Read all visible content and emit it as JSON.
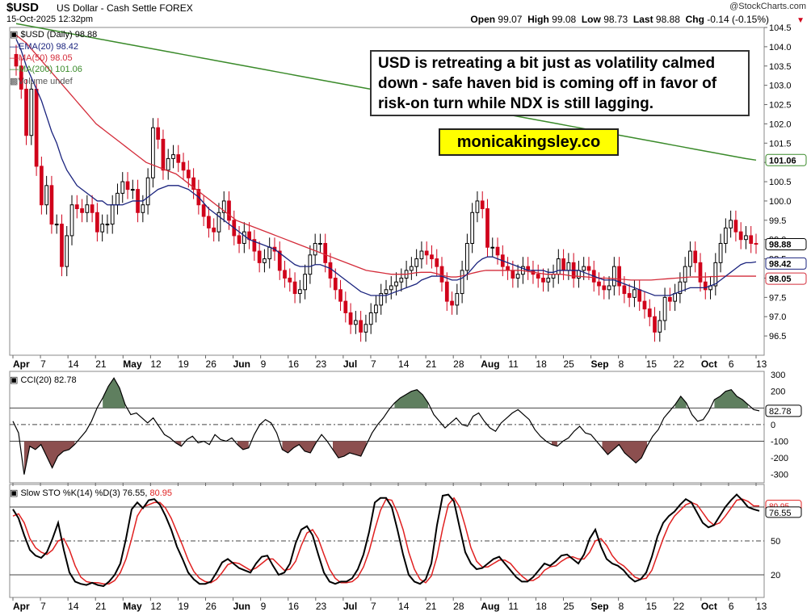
{
  "header": {
    "symbol": "$USD",
    "subtitle": "US Dollar - Cash Settle  FOREX",
    "datetime": "15-Oct-2025 12:32pm",
    "copyright": "@StockCharts.com",
    "open_label": "Open",
    "open": "99.07",
    "high_label": "High",
    "high": "99.08",
    "low_label": "Low",
    "low": "98.73",
    "last_label": "Last",
    "last": "98.88",
    "chg_label": "Chg",
    "chg": "-0.14 (-0.15%)"
  },
  "annotation": "USD is retreating a bit just as volatility calmed down - safe haven bid is coming off in favor of risk-on turn while NDX is still lagging.",
  "brand": "monicakingsley.co",
  "legend": {
    "price": "$USD (Daily) 98.88",
    "ema": "EMA(20) 98.42",
    "ma50": "MA(50) 98.05",
    "ma200": "MA(200) 101.06",
    "volume": "Volume undef",
    "cci": "CCI(20) 82.78",
    "sto_main": "Slow STO %K(14) %D(3) 76.55,",
    "sto_d": "80.95"
  },
  "colors": {
    "up": "#000000",
    "down": "#d0021b",
    "ema": "#1a237e",
    "ma50": "#d42c3a",
    "ma200": "#3a8a2a",
    "cci_fill": "#5f7f5f",
    "cci_neg": "#8c4f4f",
    "k": "#000000",
    "d": "#e02020"
  },
  "chart_data": [
    {
      "type": "candlestick",
      "title": "$USD (Daily) 98.88",
      "ylim": [
        96.0,
        104.5
      ],
      "y_ticks": [
        "104.5",
        "104.0",
        "103.5",
        "103.0",
        "102.5",
        "102.0",
        "101.5",
        "101.0",
        "100.5",
        "100.0",
        "99.5",
        "99.0",
        "98.5",
        "98.0",
        "97.5",
        "97.0",
        "96.5"
      ],
      "x_ticks": [
        "Apr",
        "7",
        "14",
        "21",
        "May",
        "12",
        "19",
        "26",
        "Jun",
        "9",
        "16",
        "23",
        "Jul",
        "7",
        "14",
        "21",
        "28",
        "Aug",
        "11",
        "18",
        "25",
        "Sep",
        "8",
        "15",
        "22",
        "Oct",
        "6",
        "13"
      ],
      "x_ticks_bold": [
        "Apr",
        "May",
        "Jun",
        "Jul",
        "Aug",
        "Sep",
        "Oct"
      ],
      "last_labels": {
        "price": "98.88",
        "ema": "98.42",
        "ma50": "98.05",
        "ma200": "101.06"
      },
      "close": [
        103.5,
        102.9,
        101.7,
        102.9,
        100.9,
        99.9,
        100.4,
        99.4,
        99.4,
        98.3,
        99.1,
        99.9,
        99.8,
        99.7,
        99.9,
        99.7,
        99.2,
        99.4,
        99.4,
        99.9,
        100.2,
        100.5,
        100.3,
        100.3,
        99.7,
        99.9,
        100.6,
        101.9,
        101.6,
        100.8,
        101.1,
        101.2,
        101.0,
        100.8,
        100.6,
        100.3,
        99.9,
        99.6,
        99.3,
        99.2,
        99.7,
        100.0,
        99.5,
        99.1,
        98.9,
        99.2,
        99.0,
        98.7,
        98.4,
        98.5,
        98.8,
        98.7,
        98.2,
        98.0,
        97.9,
        97.6,
        97.7,
        98.1,
        98.6,
        98.9,
        98.9,
        98.4,
        98.0,
        97.7,
        97.4,
        97.1,
        96.8,
        96.9,
        96.6,
        96.8,
        97.1,
        97.3,
        97.6,
        97.7,
        97.8,
        97.9,
        98.0,
        98.2,
        98.3,
        98.5,
        98.7,
        98.6,
        98.5,
        98.3,
        97.9,
        97.4,
        97.3,
        97.6,
        98.2,
        98.9,
        99.7,
        100.0,
        99.8,
        98.8,
        98.8,
        98.6,
        98.3,
        98.2,
        98.0,
        98.1,
        98.3,
        98.2,
        98.1,
        98.0,
        97.9,
        98.0,
        98.1,
        98.5,
        98.2,
        98.4,
        98.0,
        98.2,
        98.3,
        98.2,
        97.9,
        97.8,
        97.7,
        97.8,
        98.3,
        97.8,
        97.6,
        97.5,
        97.7,
        97.4,
        97.2,
        97.0,
        96.6,
        96.9,
        97.5,
        97.4,
        97.6,
        97.9,
        98.3,
        98.7,
        98.4,
        97.9,
        97.7,
        97.8,
        98.4,
        98.9,
        99.3,
        99.5,
        99.2,
        99.0,
        99.1,
        98.9,
        98.88
      ],
      "ema20": [
        104.2,
        103.9,
        103.5,
        103.2,
        102.9,
        102.6,
        102.2,
        101.8,
        101.5,
        101.1,
        100.8,
        100.6,
        100.4,
        100.3,
        100.2,
        100.1,
        100.0,
        100.0,
        99.9,
        99.9,
        99.9,
        99.9,
        99.95,
        100.0,
        100.0,
        100.0,
        100.1,
        100.2,
        100.3,
        100.35,
        100.4,
        100.4,
        100.4,
        100.35,
        100.3,
        100.2,
        100.1,
        99.95,
        99.8,
        99.7,
        99.6,
        99.5,
        99.4,
        99.3,
        99.2,
        99.1,
        99.0,
        98.95,
        98.9,
        98.85,
        98.8,
        98.75,
        98.65,
        98.55,
        98.45,
        98.35,
        98.3,
        98.3,
        98.3,
        98.35,
        98.35,
        98.3,
        98.25,
        98.15,
        98.05,
        97.95,
        97.85,
        97.75,
        97.65,
        97.6,
        97.55,
        97.55,
        97.55,
        97.55,
        97.6,
        97.65,
        97.7,
        97.75,
        97.8,
        97.85,
        97.95,
        98.0,
        98.05,
        98.05,
        98.05,
        98.0,
        97.95,
        97.95,
        98.0,
        98.1,
        98.25,
        98.4,
        98.5,
        98.55,
        98.55,
        98.5,
        98.45,
        98.4,
        98.35,
        98.3,
        98.25,
        98.2,
        98.2,
        98.2,
        98.2,
        98.15,
        98.15,
        98.2,
        98.2,
        98.2,
        98.2,
        98.2,
        98.15,
        98.1,
        98.05,
        98.0,
        97.95,
        97.95,
        97.95,
        97.9,
        97.85,
        97.8,
        97.75,
        97.7,
        97.65,
        97.6,
        97.55,
        97.55,
        97.55,
        97.55,
        97.6,
        97.65,
        97.7,
        97.75,
        97.75,
        97.75,
        97.75,
        97.8,
        97.85,
        97.95,
        98.05,
        98.15,
        98.25,
        98.35,
        98.4,
        98.4,
        98.42
      ],
      "ma50": [
        104.3,
        104.2,
        104.1,
        103.95,
        103.8,
        103.65,
        103.5,
        103.35,
        103.2,
        103.05,
        102.9,
        102.75,
        102.6,
        102.45,
        102.3,
        102.15,
        102.0,
        101.9,
        101.8,
        101.7,
        101.6,
        101.5,
        101.4,
        101.3,
        101.2,
        101.1,
        101.0,
        100.95,
        100.9,
        100.85,
        100.8,
        100.75,
        100.7,
        100.6,
        100.5,
        100.4,
        100.3,
        100.2,
        100.1,
        100.0,
        99.9,
        99.8,
        99.7,
        99.6,
        99.5,
        99.45,
        99.4,
        99.35,
        99.3,
        99.25,
        99.2,
        99.15,
        99.1,
        99.05,
        99.0,
        98.95,
        98.9,
        98.85,
        98.8,
        98.75,
        98.7,
        98.65,
        98.6,
        98.55,
        98.5,
        98.45,
        98.4,
        98.35,
        98.3,
        98.25,
        98.2,
        98.18,
        98.16,
        98.14,
        98.12,
        98.1,
        98.1,
        98.1,
        98.1,
        98.12,
        98.14,
        98.15,
        98.15,
        98.15,
        98.12,
        98.08,
        98.05,
        98.03,
        98.03,
        98.05,
        98.08,
        98.12,
        98.15,
        98.18,
        98.2,
        98.2,
        98.2,
        98.2,
        98.2,
        98.2,
        98.2,
        98.2,
        98.18,
        98.16,
        98.14,
        98.12,
        98.1,
        98.1,
        98.1,
        98.1,
        98.08,
        98.06,
        98.05,
        98.04,
        98.03,
        98.02,
        98.01,
        98.0,
        98.0,
        97.99,
        97.98,
        97.97,
        97.96,
        97.95,
        97.95,
        97.95,
        97.95,
        97.95,
        97.96,
        97.97,
        97.98,
        97.99,
        98.0,
        98.01,
        98.02,
        98.03,
        98.03,
        98.03,
        98.03,
        98.04,
        98.04,
        98.05,
        98.05,
        98.05,
        98.05,
        98.05,
        98.05,
        98.05,
        98.05
      ],
      "ma200": [
        104.6,
        104.55,
        104.5,
        104.45,
        104.4,
        104.35,
        104.3,
        104.25,
        104.2,
        104.15,
        104.1,
        104.05,
        104.0,
        103.95,
        103.9,
        103.85,
        103.8,
        103.75,
        103.7,
        103.65,
        103.6,
        103.55,
        103.5,
        103.45,
        103.4,
        103.35,
        103.3,
        103.25,
        103.2,
        103.15,
        103.1,
        103.05,
        103.0,
        102.95,
        102.9,
        102.85,
        102.8,
        102.75,
        102.7,
        102.65,
        102.6,
        102.55,
        102.5,
        102.45,
        102.4,
        102.35,
        102.3,
        102.25,
        102.2,
        102.15,
        102.1,
        102.05,
        102.0,
        101.95,
        101.9,
        101.85,
        101.8,
        101.75,
        101.7,
        101.65,
        101.6,
        101.55,
        101.5,
        101.45,
        101.4,
        101.35,
        101.3,
        101.25,
        101.2,
        101.15,
        101.1,
        101.06
      ]
    },
    {
      "type": "line",
      "title": "CCI(20) 82.78",
      "ylim": [
        -350,
        320
      ],
      "y_ticks": [
        "300",
        "200",
        "100",
        "0",
        "-100",
        "-200",
        "-300"
      ],
      "last_label": "82.78",
      "values": [
        20,
        -50,
        -300,
        -130,
        -150,
        -120,
        -190,
        -260,
        -190,
        -160,
        -150,
        -120,
        -80,
        -40,
        20,
        100,
        160,
        230,
        280,
        220,
        120,
        60,
        70,
        40,
        10,
        40,
        -10,
        -60,
        -80,
        -110,
        -130,
        -90,
        -70,
        -110,
        -100,
        -120,
        -60,
        -90,
        -100,
        -80,
        -120,
        -150,
        -140,
        -60,
        0,
        30,
        10,
        -50,
        -150,
        -170,
        -140,
        -120,
        -160,
        -170,
        -110,
        -60,
        -100,
        -150,
        -200,
        -190,
        -170,
        -180,
        -190,
        -120,
        -50,
        0,
        40,
        90,
        130,
        160,
        180,
        200,
        210,
        180,
        130,
        60,
        20,
        -20,
        10,
        40,
        0,
        -10,
        50,
        70,
        20,
        -20,
        -40,
        10,
        40,
        70,
        90,
        60,
        30,
        -30,
        -70,
        -100,
        -120,
        -130,
        -100,
        -80,
        -40,
        -10,
        -50,
        -60,
        -100,
        -140,
        -180,
        -150,
        -120,
        -170,
        -200,
        -230,
        -200,
        -130,
        -70,
        -30,
        40,
        80,
        120,
        170,
        130,
        60,
        20,
        30,
        80,
        150,
        170,
        200,
        210,
        170,
        150,
        120,
        90,
        82.78
      ]
    },
    {
      "type": "line",
      "title": "Slow STO %K(14) %D(3)",
      "ylim": [
        0,
        100
      ],
      "y_ticks": [
        "80",
        "50",
        "20"
      ],
      "last_labels": {
        "k": "76.55",
        "d": "80.95"
      },
      "series": [
        {
          "name": "%K",
          "values": [
            78,
            70,
            55,
            42,
            37,
            35,
            40,
            52,
            66,
            42,
            22,
            14,
            12,
            11,
            13,
            11,
            10,
            14,
            20,
            30,
            52,
            78,
            84,
            79,
            86,
            87,
            82,
            72,
            60,
            45,
            34,
            22,
            16,
            12,
            12,
            14,
            22,
            31,
            34,
            30,
            26,
            24,
            22,
            30,
            36,
            37,
            28,
            20,
            22,
            30,
            48,
            60,
            63,
            55,
            38,
            22,
            14,
            12,
            14,
            14,
            17,
            25,
            38,
            58,
            84,
            88,
            88,
            80,
            60,
            38,
            20,
            14,
            12,
            16,
            30,
            64,
            90,
            91,
            85,
            62,
            40,
            30,
            25,
            26,
            30,
            34,
            36,
            30,
            24,
            18,
            14,
            14,
            18,
            24,
            30,
            28,
            32,
            37,
            38,
            34,
            30,
            38,
            52,
            60,
            45,
            34,
            30,
            28,
            24,
            18,
            14,
            16,
            22,
            36,
            54,
            66,
            72,
            76,
            82,
            87,
            84,
            75,
            66,
            62,
            64,
            72,
            80,
            86,
            91,
            86,
            80,
            78,
            76.55
          ]
        },
        {
          "name": "%D",
          "values": [
            72,
            74,
            66,
            52,
            44,
            40,
            38,
            42,
            50,
            52,
            42,
            28,
            18,
            14,
            13,
            13,
            12,
            12,
            15,
            22,
            34,
            52,
            72,
            80,
            82,
            84,
            84,
            79,
            70,
            58,
            46,
            33,
            23,
            17,
            14,
            13,
            16,
            22,
            29,
            31,
            30,
            27,
            24,
            26,
            30,
            34,
            34,
            29,
            24,
            25,
            32,
            46,
            57,
            60,
            52,
            38,
            25,
            17,
            13,
            13,
            14,
            18,
            27,
            41,
            60,
            77,
            87,
            86,
            75,
            60,
            40,
            25,
            16,
            13,
            19,
            36,
            61,
            82,
            88,
            80,
            63,
            44,
            32,
            27,
            27,
            30,
            33,
            33,
            30,
            24,
            19,
            15,
            15,
            18,
            24,
            27,
            28,
            32,
            35,
            36,
            34,
            34,
            40,
            50,
            52,
            46,
            37,
            31,
            28,
            23,
            18,
            16,
            17,
            24,
            38,
            52,
            64,
            72,
            77,
            82,
            84,
            82,
            75,
            68,
            64,
            66,
            72,
            79,
            86,
            87,
            85,
            81,
            80.95
          ]
        }
      ]
    }
  ]
}
